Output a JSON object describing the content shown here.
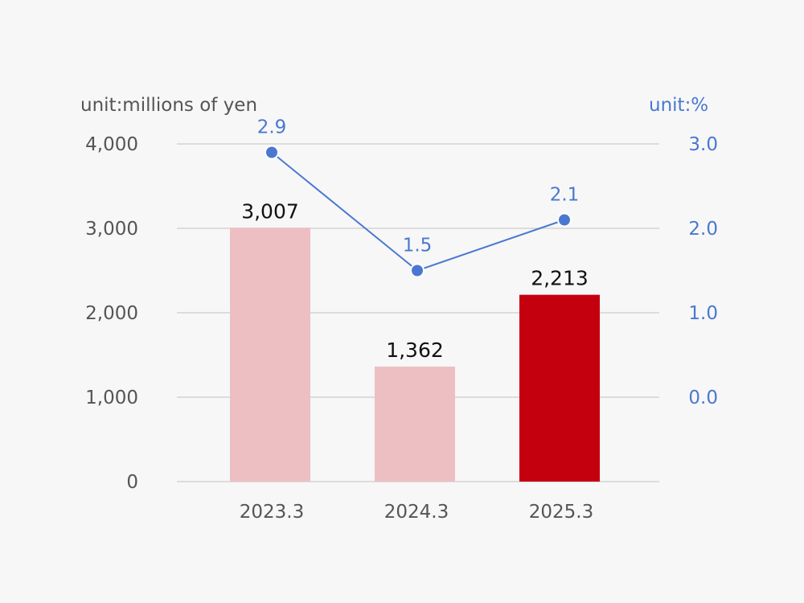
{
  "chart_data": {
    "type": "bar",
    "categories": [
      "2023.3",
      "2024.3",
      "2025.3"
    ],
    "series": [
      {
        "kind": "bar",
        "values": [
          3007,
          1362,
          2213
        ],
        "value_labels": [
          "3,007",
          "1,362",
          "2,213"
        ],
        "colors": [
          "#edbfc3",
          "#edbfc3",
          "#c4000f"
        ],
        "axis": "left"
      },
      {
        "kind": "line",
        "values": [
          2.9,
          1.5,
          2.1
        ],
        "value_labels": [
          "2.9",
          "1.5",
          "2.1"
        ],
        "color": "#4a78d0",
        "axis": "right"
      }
    ],
    "left_axis": {
      "unit_label": "unit:millions of yen",
      "ylim": [
        0,
        4000
      ],
      "ticks": [
        0,
        1000,
        2000,
        3000,
        4000
      ],
      "tick_labels": [
        "0",
        "1,000",
        "2,000",
        "3,000",
        "4,000"
      ]
    },
    "right_axis": {
      "unit_label": "unit:%",
      "ylim": [
        -1,
        3
      ],
      "ticks": [
        0,
        1,
        2,
        3
      ],
      "tick_labels": [
        "0.0",
        "1.0",
        "2.0",
        "3.0"
      ]
    },
    "grid": true,
    "colors": {
      "grid": "#d3d3d3",
      "axis_text": "#555555",
      "bar_label": "#111111",
      "right_axis_text": "#4a78d0"
    }
  }
}
